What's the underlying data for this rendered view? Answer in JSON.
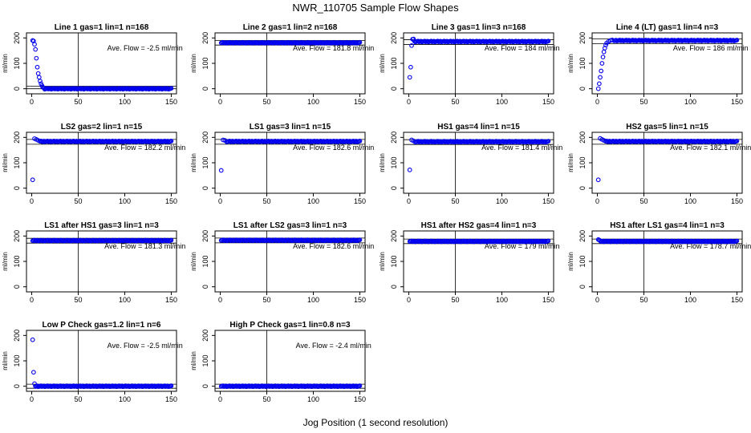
{
  "figure": {
    "title": "NWR_110705  Sample Flow Shapes",
    "xlabel": "Jog Position (1 second resolution)",
    "ylabel": "ml/min",
    "flow_prefix": "Ave. Flow =",
    "flow_unit": "ml/min",
    "point_color": "#0000ee"
  },
  "chart_data": [
    {
      "type": "scatter",
      "title": "Line 1 gas=1 lin=1 n=168",
      "ave_flow": "-2.5",
      "xlim": [
        0,
        150
      ],
      "ylim": [
        -20,
        220
      ],
      "xticks": [
        0,
        50,
        100,
        150
      ],
      "yticks": [
        0,
        100,
        200
      ],
      "vline_x": 50,
      "hlines": [
        0,
        10
      ],
      "profile": "decay",
      "points": [
        [
          1,
          190
        ],
        [
          2,
          188
        ],
        [
          3,
          175
        ],
        [
          4,
          155
        ],
        [
          5,
          120
        ],
        [
          6,
          85
        ],
        [
          7,
          60
        ],
        [
          8,
          45
        ],
        [
          9,
          30
        ],
        [
          10,
          20
        ],
        [
          11,
          12
        ],
        [
          12,
          6
        ],
        [
          13,
          3
        ]
      ],
      "plateau": 0,
      "plateau_from": 14
    },
    {
      "type": "scatter",
      "title": "Line 2 gas=1 lin=2 n=168",
      "ave_flow": "181.8",
      "xlim": [
        0,
        150
      ],
      "ylim": [
        -20,
        220
      ],
      "xticks": [
        0,
        50,
        100,
        150
      ],
      "yticks": [
        0,
        100,
        200
      ],
      "vline_x": 50,
      "hlines": [
        172,
        190
      ],
      "profile": "flat",
      "points": [],
      "plateau": 181,
      "plateau_from": 1
    },
    {
      "type": "scatter",
      "title": "Line 3 gas=1 lin=3 n=168",
      "ave_flow": "184",
      "xlim": [
        0,
        150
      ],
      "ylim": [
        -20,
        220
      ],
      "xticks": [
        0,
        50,
        100,
        150
      ],
      "yticks": [
        0,
        100,
        200
      ],
      "vline_x": 50,
      "hlines": [
        174,
        193
      ],
      "profile": "rise",
      "points": [
        [
          1,
          45
        ],
        [
          2,
          85
        ],
        [
          3,
          170
        ],
        [
          4,
          195
        ],
        [
          5,
          196
        ]
      ],
      "plateau": 186,
      "plateau_from": 6
    },
    {
      "type": "scatter",
      "title": "Line 4 (LT) gas=1 lin=4 n=3",
      "ave_flow": "186",
      "xlim": [
        0,
        150
      ],
      "ylim": [
        -20,
        220
      ],
      "xticks": [
        0,
        50,
        100,
        150
      ],
      "yticks": [
        0,
        100,
        200
      ],
      "vline_x": 50,
      "hlines": [
        177,
        196
      ],
      "profile": "rise",
      "points": [
        [
          1,
          0
        ],
        [
          2,
          20
        ],
        [
          3,
          45
        ],
        [
          4,
          70
        ],
        [
          5,
          100
        ],
        [
          6,
          125
        ],
        [
          7,
          145
        ],
        [
          8,
          160
        ],
        [
          9,
          172
        ],
        [
          10,
          180
        ],
        [
          12,
          186
        ],
        [
          14,
          190
        ],
        [
          16,
          192
        ]
      ],
      "plateau": 190,
      "plateau_from": 18
    },
    {
      "type": "scatter",
      "title": "LS2 gas=2 lin=1 n=15",
      "ave_flow": "182.2",
      "xlim": [
        0,
        150
      ],
      "ylim": [
        -20,
        220
      ],
      "xticks": [
        0,
        50,
        100,
        150
      ],
      "yticks": [
        0,
        100,
        200
      ],
      "vline_x": 50,
      "hlines": [
        173,
        192
      ],
      "profile": "dip",
      "points": [
        [
          1,
          33
        ],
        [
          3,
          195
        ],
        [
          5,
          192
        ],
        [
          7,
          188
        ]
      ],
      "plateau": 184,
      "plateau_from": 9
    },
    {
      "type": "scatter",
      "title": "LS1 gas=3 lin=1 n=15",
      "ave_flow": "182.6",
      "xlim": [
        0,
        150
      ],
      "ylim": [
        -20,
        220
      ],
      "xticks": [
        0,
        50,
        100,
        150
      ],
      "yticks": [
        0,
        100,
        200
      ],
      "vline_x": 50,
      "hlines": [
        173,
        192
      ],
      "profile": "dip",
      "points": [
        [
          1,
          70
        ],
        [
          3,
          190
        ],
        [
          5,
          188
        ]
      ],
      "plateau": 184,
      "plateau_from": 7
    },
    {
      "type": "scatter",
      "title": "HS1 gas=4 lin=1 n=15",
      "ave_flow": "181.4",
      "xlim": [
        0,
        150
      ],
      "ylim": [
        -20,
        220
      ],
      "xticks": [
        0,
        50,
        100,
        150
      ],
      "yticks": [
        0,
        100,
        200
      ],
      "vline_x": 50,
      "hlines": [
        172,
        191
      ],
      "profile": "dip",
      "points": [
        [
          1,
          72
        ],
        [
          3,
          190
        ],
        [
          5,
          186
        ]
      ],
      "plateau": 183,
      "plateau_from": 7
    },
    {
      "type": "scatter",
      "title": "HS2 gas=5 lin=1 n=15",
      "ave_flow": "182.1",
      "xlim": [
        0,
        150
      ],
      "ylim": [
        -20,
        220
      ],
      "xticks": [
        0,
        50,
        100,
        150
      ],
      "yticks": [
        0,
        100,
        200
      ],
      "vline_x": 50,
      "hlines": [
        173,
        192
      ],
      "profile": "dip",
      "points": [
        [
          1,
          33
        ],
        [
          3,
          196
        ],
        [
          5,
          192
        ],
        [
          7,
          188
        ]
      ],
      "plateau": 184,
      "plateau_from": 9
    },
    {
      "type": "scatter",
      "title": "LS1 after HS1 gas=3 lin=1 n=3",
      "ave_flow": "181.3",
      "xlim": [
        0,
        150
      ],
      "ylim": [
        -20,
        220
      ],
      "xticks": [
        0,
        50,
        100,
        150
      ],
      "yticks": [
        0,
        100,
        200
      ],
      "vline_x": 50,
      "hlines": [
        172,
        191
      ],
      "profile": "flat",
      "points": [],
      "plateau": 182,
      "plateau_from": 1
    },
    {
      "type": "scatter",
      "title": "LS1 after LS2 gas=3 lin=1 n=3",
      "ave_flow": "182.6",
      "xlim": [
        0,
        150
      ],
      "ylim": [
        -20,
        220
      ],
      "xticks": [
        0,
        50,
        100,
        150
      ],
      "yticks": [
        0,
        100,
        200
      ],
      "vline_x": 50,
      "hlines": [
        173,
        192
      ],
      "profile": "flat",
      "points": [],
      "plateau": 183,
      "plateau_from": 1
    },
    {
      "type": "scatter",
      "title": "HS1 after HS2 gas=4 lin=1 n=3",
      "ave_flow": "179",
      "xlim": [
        0,
        150
      ],
      "ylim": [
        -20,
        220
      ],
      "xticks": [
        0,
        50,
        100,
        150
      ],
      "yticks": [
        0,
        100,
        200
      ],
      "vline_x": 50,
      "hlines": [
        170,
        188
      ],
      "profile": "flat",
      "points": [],
      "plateau": 179,
      "plateau_from": 1
    },
    {
      "type": "scatter",
      "title": "HS1 after LS1 gas=4 lin=1 n=3",
      "ave_flow": "178.7",
      "xlim": [
        0,
        150
      ],
      "ylim": [
        -20,
        220
      ],
      "xticks": [
        0,
        50,
        100,
        150
      ],
      "yticks": [
        0,
        100,
        200
      ],
      "vline_x": 50,
      "hlines": [
        170,
        188
      ],
      "profile": "flat",
      "points": [
        [
          1,
          186
        ],
        [
          2,
          184
        ]
      ],
      "plateau": 179,
      "plateau_from": 3
    },
    {
      "type": "scatter",
      "title": "Low P Check gas=1.2 lin=1 n=6",
      "ave_flow": "-2.5",
      "xlim": [
        0,
        150
      ],
      "ylim": [
        -20,
        220
      ],
      "xticks": [
        0,
        50,
        100,
        150
      ],
      "yticks": [
        0,
        100,
        200
      ],
      "vline_x": 50,
      "hlines": [
        -8,
        8
      ],
      "profile": "spike",
      "points": [
        [
          1,
          183
        ],
        [
          2,
          55
        ],
        [
          3,
          10
        ]
      ],
      "plateau": 0,
      "plateau_from": 4
    },
    {
      "type": "scatter",
      "title": "High P Check gas=1 lin=0.8 n=3",
      "ave_flow": "-2.4",
      "xlim": [
        0,
        150
      ],
      "ylim": [
        -20,
        220
      ],
      "xticks": [
        0,
        50,
        100,
        150
      ],
      "yticks": [
        0,
        100,
        200
      ],
      "vline_x": 50,
      "hlines": [
        -8,
        8
      ],
      "profile": "flat",
      "points": [],
      "plateau": 0,
      "plateau_from": 1
    }
  ]
}
